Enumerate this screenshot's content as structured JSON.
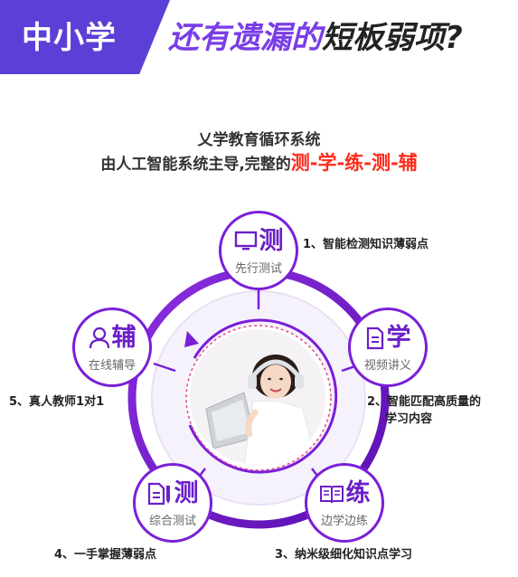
{
  "banner": {
    "tag": "中小学",
    "headline_accent": "还有遗漏的",
    "headline_rest": "短板弱项?"
  },
  "subtitle": {
    "line1": "乂学教育循环系统",
    "line2_prefix": "由人工智能系统主导,完整的",
    "line2_highlight": "测-学-练-测-辅"
  },
  "nodes": [
    {
      "char": "测",
      "caption": "先行测试",
      "icon": "monitor-icon"
    },
    {
      "char": "学",
      "caption": "视频讲义",
      "icon": "document-icon"
    },
    {
      "char": "练",
      "caption": "边学边练",
      "icon": "open-book-icon"
    },
    {
      "char": "测",
      "caption": "综合测试",
      "icon": "document-pencil-icon"
    },
    {
      "char": "辅",
      "caption": "在线辅导",
      "icon": "person-icon"
    }
  ],
  "steps": [
    "1、智能检测知识薄弱点",
    "2、智能匹配高质量的",
    "学习内容",
    "3、纳米级细化知识点学习",
    "4、一手掌握薄弱点",
    "5、真人教师1对1"
  ],
  "colors": {
    "brand_purple": "#5b3fd6",
    "ring_purple": "#7a1fd8",
    "highlight_red": "#ff2a1a"
  }
}
